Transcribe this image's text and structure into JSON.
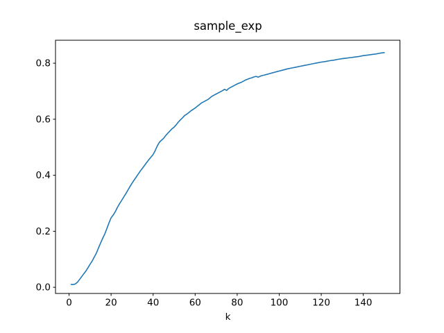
{
  "figure": {
    "background_color": "#ffffff",
    "text_color": "#000000",
    "spine_color": "#000000"
  },
  "chart_data": {
    "type": "line",
    "title": "sample_exp",
    "xlabel": "k",
    "ylabel": "",
    "grid": false,
    "legend": "none",
    "line_color": "#1f77b4",
    "xlim": [
      -6.45,
      157.45
    ],
    "ylim": [
      -0.022,
      0.882
    ],
    "x_ticks": [
      0,
      20,
      40,
      60,
      80,
      100,
      120,
      140
    ],
    "x_tick_labels": [
      "0",
      "20",
      "40",
      "60",
      "80",
      "100",
      "120",
      "140"
    ],
    "y_ticks": [
      0.0,
      0.2,
      0.4,
      0.6,
      0.8
    ],
    "y_tick_labels": [
      "0.0",
      "0.2",
      "0.4",
      "0.6",
      "0.8"
    ],
    "series": [
      {
        "name": "sample_exp",
        "color": "#1f77b4",
        "points": [
          [
            1,
            0.01
          ],
          [
            2,
            0.01
          ],
          [
            3,
            0.012
          ],
          [
            4,
            0.018
          ],
          [
            5,
            0.028
          ],
          [
            6,
            0.038
          ],
          [
            7,
            0.048
          ],
          [
            8,
            0.058
          ],
          [
            9,
            0.07
          ],
          [
            10,
            0.082
          ],
          [
            11,
            0.094
          ],
          [
            12,
            0.108
          ],
          [
            13,
            0.122
          ],
          [
            14,
            0.14
          ],
          [
            15,
            0.158
          ],
          [
            16,
            0.175
          ],
          [
            17,
            0.19
          ],
          [
            18,
            0.21
          ],
          [
            19,
            0.23
          ],
          [
            20,
            0.248
          ],
          [
            21,
            0.258
          ],
          [
            22,
            0.27
          ],
          [
            23,
            0.285
          ],
          [
            24,
            0.298
          ],
          [
            25,
            0.31
          ],
          [
            26,
            0.322
          ],
          [
            27,
            0.334
          ],
          [
            28,
            0.347
          ],
          [
            29,
            0.36
          ],
          [
            30,
            0.372
          ],
          [
            31,
            0.383
          ],
          [
            32,
            0.394
          ],
          [
            33,
            0.405
          ],
          [
            34,
            0.416
          ],
          [
            35,
            0.426
          ],
          [
            36,
            0.436
          ],
          [
            37,
            0.446
          ],
          [
            38,
            0.456
          ],
          [
            39,
            0.465
          ],
          [
            40,
            0.474
          ],
          [
            41,
            0.488
          ],
          [
            42,
            0.505
          ],
          [
            43,
            0.518
          ],
          [
            44,
            0.525
          ],
          [
            45,
            0.532
          ],
          [
            46,
            0.542
          ],
          [
            47,
            0.55
          ],
          [
            48,
            0.558
          ],
          [
            49,
            0.566
          ],
          [
            50,
            0.572
          ],
          [
            51,
            0.58
          ],
          [
            52,
            0.59
          ],
          [
            53,
            0.598
          ],
          [
            54,
            0.605
          ],
          [
            55,
            0.613
          ],
          [
            56,
            0.618
          ],
          [
            57,
            0.624
          ],
          [
            58,
            0.63
          ],
          [
            59,
            0.635
          ],
          [
            60,
            0.64
          ],
          [
            61,
            0.646
          ],
          [
            62,
            0.652
          ],
          [
            63,
            0.658
          ],
          [
            64,
            0.662
          ],
          [
            65,
            0.666
          ],
          [
            66,
            0.67
          ],
          [
            67,
            0.676
          ],
          [
            68,
            0.682
          ],
          [
            69,
            0.686
          ],
          [
            70,
            0.69
          ],
          [
            71,
            0.694
          ],
          [
            72,
            0.698
          ],
          [
            73,
            0.702
          ],
          [
            74,
            0.707
          ],
          [
            75,
            0.703
          ],
          [
            76,
            0.71
          ],
          [
            77,
            0.714
          ],
          [
            78,
            0.718
          ],
          [
            79,
            0.722
          ],
          [
            80,
            0.726
          ],
          [
            81,
            0.729
          ],
          [
            82,
            0.732
          ],
          [
            83,
            0.736
          ],
          [
            84,
            0.74
          ],
          [
            85,
            0.743
          ],
          [
            86,
            0.746
          ],
          [
            87,
            0.748
          ],
          [
            88,
            0.751
          ],
          [
            89,
            0.753
          ],
          [
            90,
            0.75
          ],
          [
            91,
            0.754
          ],
          [
            92,
            0.756
          ],
          [
            93,
            0.758
          ],
          [
            94,
            0.76
          ],
          [
            95,
            0.762
          ],
          [
            96,
            0.764
          ],
          [
            97,
            0.766
          ],
          [
            98,
            0.768
          ],
          [
            99,
            0.77
          ],
          [
            100,
            0.772
          ],
          [
            102,
            0.776
          ],
          [
            104,
            0.78
          ],
          [
            106,
            0.783
          ],
          [
            108,
            0.786
          ],
          [
            110,
            0.789
          ],
          [
            112,
            0.792
          ],
          [
            114,
            0.795
          ],
          [
            116,
            0.798
          ],
          [
            118,
            0.801
          ],
          [
            120,
            0.804
          ],
          [
            122,
            0.806
          ],
          [
            124,
            0.809
          ],
          [
            126,
            0.811
          ],
          [
            128,
            0.814
          ],
          [
            130,
            0.816
          ],
          [
            132,
            0.818
          ],
          [
            134,
            0.82
          ],
          [
            136,
            0.822
          ],
          [
            138,
            0.824
          ],
          [
            140,
            0.827
          ],
          [
            142,
            0.829
          ],
          [
            144,
            0.831
          ],
          [
            146,
            0.833
          ],
          [
            148,
            0.836
          ],
          [
            150,
            0.838
          ]
        ]
      }
    ]
  }
}
